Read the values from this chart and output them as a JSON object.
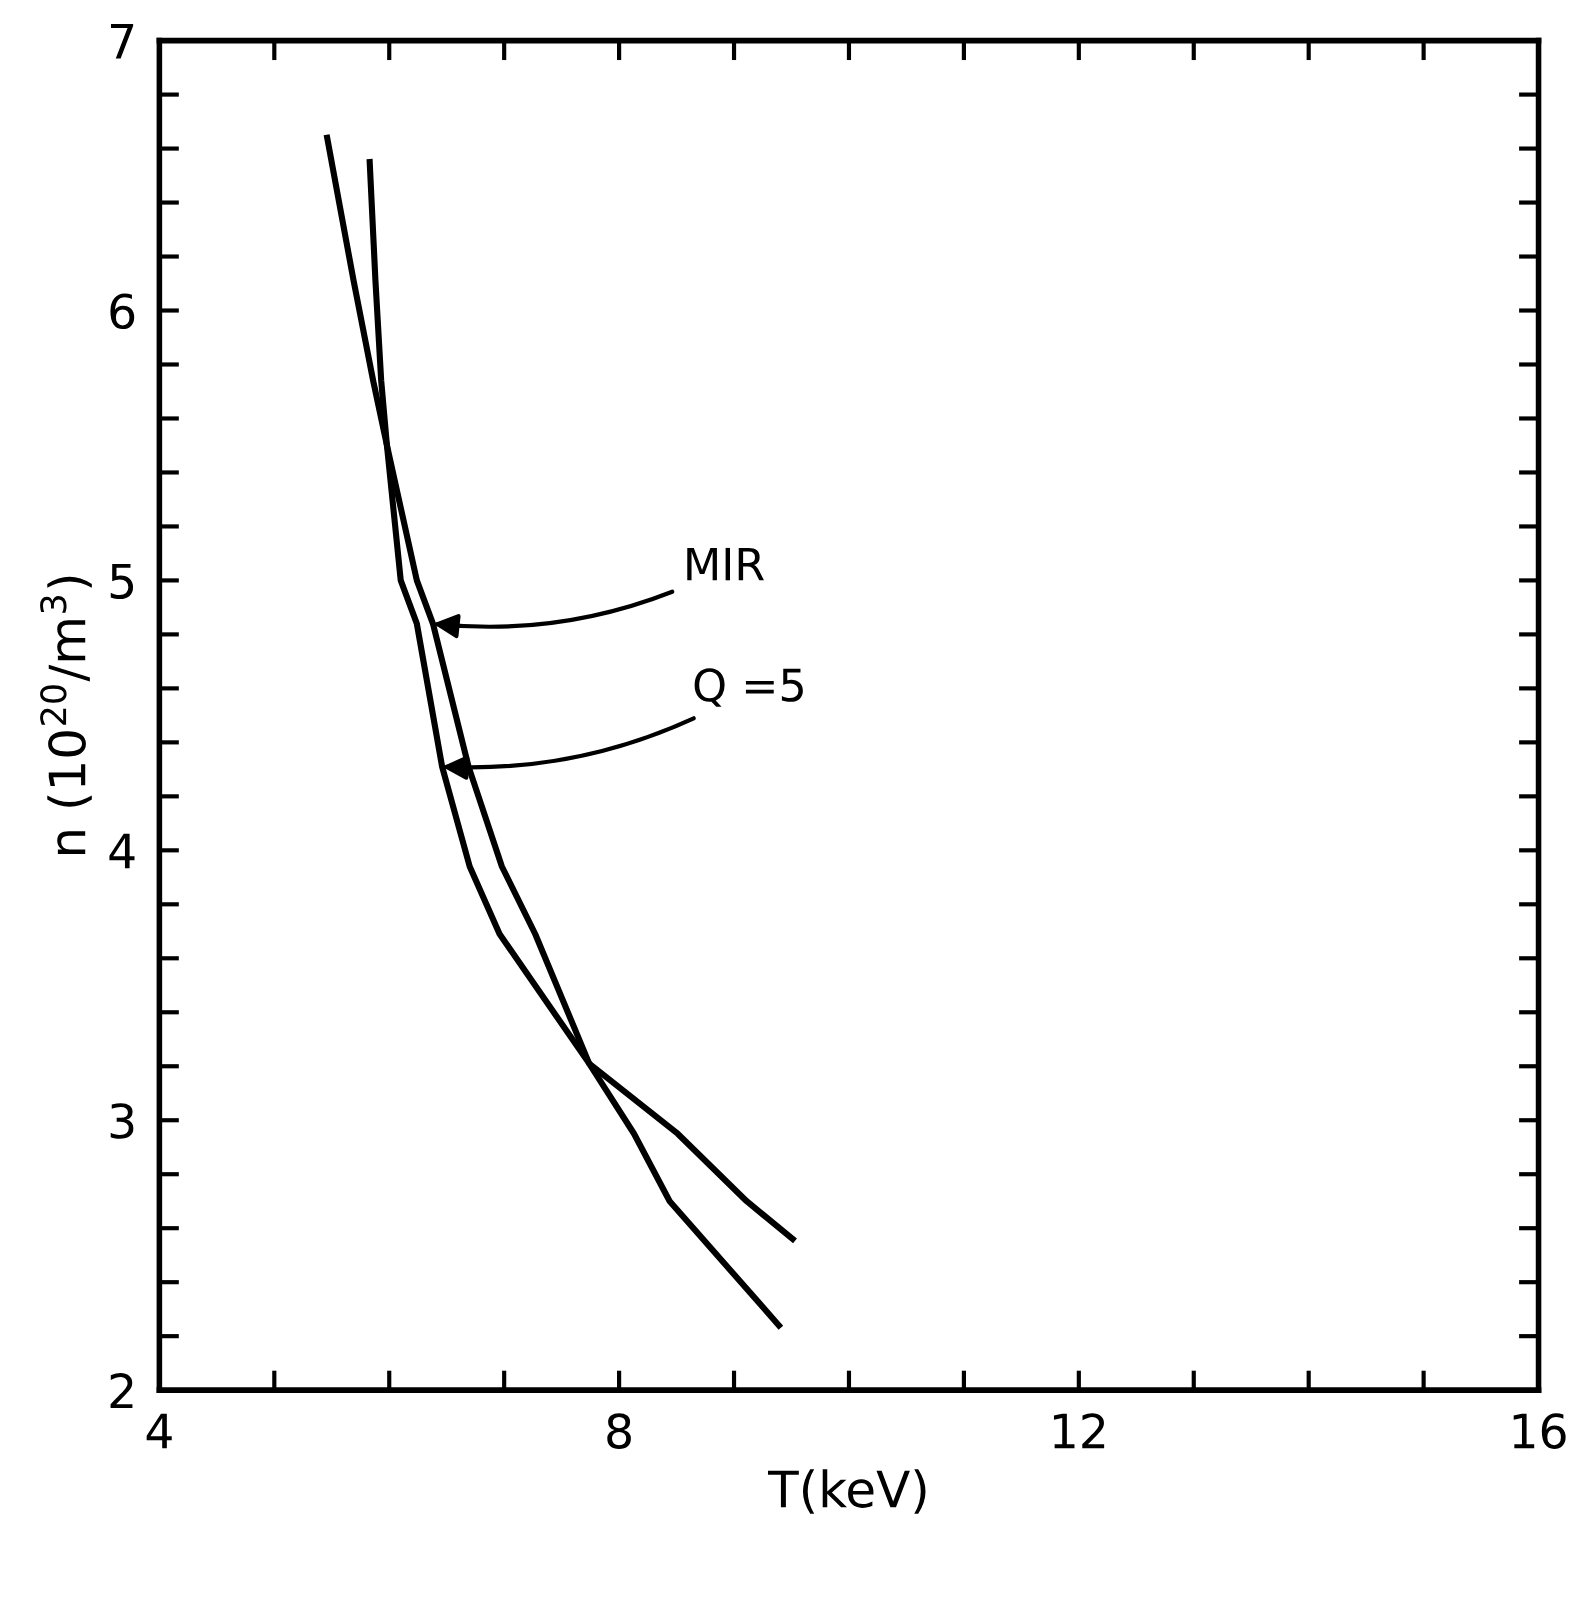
{
  "chart_data": {
    "type": "line",
    "xlabel": "T(keV)",
    "ylabel": "n (10$^{20}$/m$^{3}$)",
    "xlim": [
      4,
      16
    ],
    "ylim": [
      2,
      7
    ],
    "xticks": [
      4,
      {
        "value": 5,
        "label": null
      },
      {
        "value": 6,
        "label": null
      },
      {
        "value": 7,
        "label": null
      },
      8,
      {
        "value": 9,
        "label": null
      },
      {
        "value": 10,
        "label": null
      },
      {
        "value": 11,
        "label": null
      },
      12,
      {
        "value": 13,
        "label": null
      },
      {
        "value": 14,
        "label": null
      },
      {
        "value": 15,
        "label": null
      },
      16
    ],
    "yticks": [
      2,
      {
        "value": 2.2,
        "label": null
      },
      {
        "value": 2.4,
        "label": null
      },
      {
        "value": 2.6,
        "label": null
      },
      {
        "value": 2.8,
        "label": null
      },
      3,
      {
        "value": 3.2,
        "label": null
      },
      {
        "value": 3.4,
        "label": null
      },
      {
        "value": 3.6,
        "label": null
      },
      {
        "value": 3.8,
        "label": null
      },
      4,
      {
        "value": 4.2,
        "label": null
      },
      {
        "value": 4.4,
        "label": null
      },
      {
        "value": 4.6,
        "label": null
      },
      {
        "value": 4.8,
        "label": null
      },
      5,
      {
        "value": 5.2,
        "label": null
      },
      {
        "value": 5.4,
        "label": null
      },
      {
        "value": 5.6,
        "label": null
      },
      {
        "value": 5.8,
        "label": null
      },
      6,
      {
        "value": 6.2,
        "label": null
      },
      {
        "value": 6.4,
        "label": null
      },
      {
        "value": 6.6,
        "label": null
      },
      {
        "value": 6.8,
        "label": null
      },
      7
    ],
    "grid": false,
    "legend": false,
    "marker": "none",
    "line_style": "solid",
    "series": [
      {
        "color": "#000000",
        "x": [
          5.46,
          5.69,
          5.86,
          5.98,
          6.24,
          6.38,
          6.69,
          6.98,
          7.27,
          7.74,
          8.13,
          8.44,
          9.39
        ],
        "values": [
          6.64,
          6.11,
          5.74,
          5.5,
          5.0,
          4.84,
          4.31,
          3.94,
          3.69,
          3.21,
          2.95,
          2.7,
          2.24
        ]
      },
      {
        "color": "#000000",
        "x": [
          5.83,
          5.88,
          5.93,
          5.98,
          6.1,
          6.24,
          6.46,
          6.7,
          6.96,
          7.74,
          8.51,
          9.11,
          9.51
        ],
        "values": [
          6.55,
          6.11,
          5.74,
          5.5,
          5.0,
          4.84,
          4.31,
          3.94,
          3.69,
          3.21,
          2.95,
          2.7,
          2.56
        ]
      }
    ],
    "annotations": [
      {
        "text": "MIR",
        "x": 6.38,
        "y": 4.84
      },
      {
        "text": "Q =5",
        "x": 6.46,
        "y": 4.31
      }
    ]
  }
}
